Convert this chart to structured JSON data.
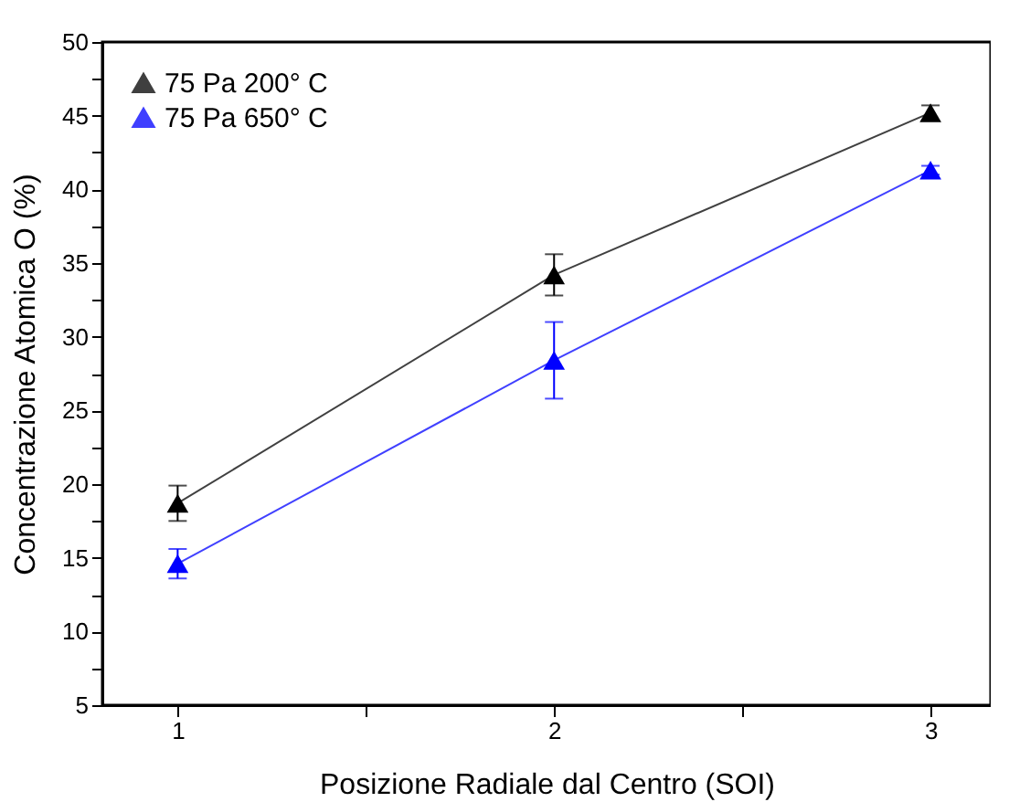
{
  "chart_data": {
    "type": "line",
    "xlabel": "Posizione Radiale dal Centro (SOI)",
    "ylabel": "Concentrazione Atomica O (%)",
    "x": [
      1,
      2,
      3
    ],
    "xlim": [
      0.8,
      3.16
    ],
    "xticks": [
      1,
      {
        "value": 1.5,
        "label": null
      },
      2,
      {
        "value": 2.5,
        "label": null
      },
      3
    ],
    "ylim": [
      5,
      50
    ],
    "yticks": [
      5,
      {
        "value": 7.5,
        "label": null
      },
      10,
      {
        "value": 12.5,
        "label": null
      },
      15,
      {
        "value": 17.5,
        "label": null
      },
      20,
      {
        "value": 22.5,
        "label": null
      },
      25,
      {
        "value": 27.5,
        "label": null
      },
      30,
      {
        "value": 32.5,
        "label": null
      },
      35,
      {
        "value": 37.5,
        "label": null
      },
      40,
      {
        "value": 42.5,
        "label": null
      },
      45,
      {
        "value": 47.5,
        "label": null
      },
      50
    ],
    "series": [
      {
        "name": "75 Pa 200° C",
        "color": "#000000",
        "values": [
          18.7,
          34.2,
          45.2
        ],
        "errors": [
          1.2,
          1.4,
          0.5
        ]
      },
      {
        "name": "75 Pa 650° C",
        "color": "#0000ff",
        "values": [
          14.6,
          28.4,
          41.3
        ],
        "errors": [
          1.0,
          2.6,
          0.3
        ]
      }
    ],
    "marker": "triangle",
    "line_style": "solid",
    "grid": false,
    "legend": "top left"
  }
}
